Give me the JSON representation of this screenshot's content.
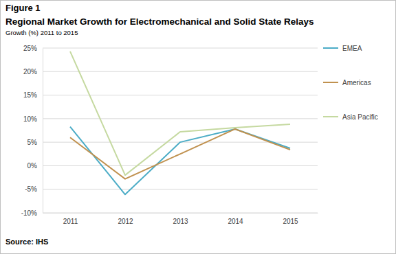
{
  "chart_data": {
    "type": "line",
    "figure_label": "Figure 1",
    "title": "Regional Market Growth for Electromechanical and Solid State Relays",
    "subtitle": "Growth (%) 2011 to 2015",
    "source": "Source: IHS",
    "categories": [
      "2011",
      "2012",
      "2013",
      "2014",
      "2015"
    ],
    "series": [
      {
        "name": "EMEA",
        "color": "#4BACC6",
        "values": [
          8.3,
          -6.1,
          5.0,
          7.8,
          3.7
        ]
      },
      {
        "name": "Americas",
        "color": "#C0914F",
        "values": [
          6.0,
          -2.8,
          2.5,
          7.8,
          3.4
        ]
      },
      {
        "name": "Asia Pacific",
        "color": "#C5D9A0",
        "values": [
          24.3,
          -2.0,
          7.2,
          8.1,
          8.8
        ]
      }
    ],
    "ylim": [
      -10,
      25
    ],
    "yticks": [
      {
        "value": -10,
        "label": "-10%"
      },
      {
        "value": -5,
        "label": "-5%"
      },
      {
        "value": 0,
        "label": "0%"
      },
      {
        "value": 5,
        "label": "5%"
      },
      {
        "value": 10,
        "label": "10%"
      },
      {
        "value": 15,
        "label": "15%"
      },
      {
        "value": 20,
        "label": "20%"
      },
      {
        "value": 25,
        "label": "25%"
      }
    ],
    "grid": true,
    "legend": "right"
  }
}
